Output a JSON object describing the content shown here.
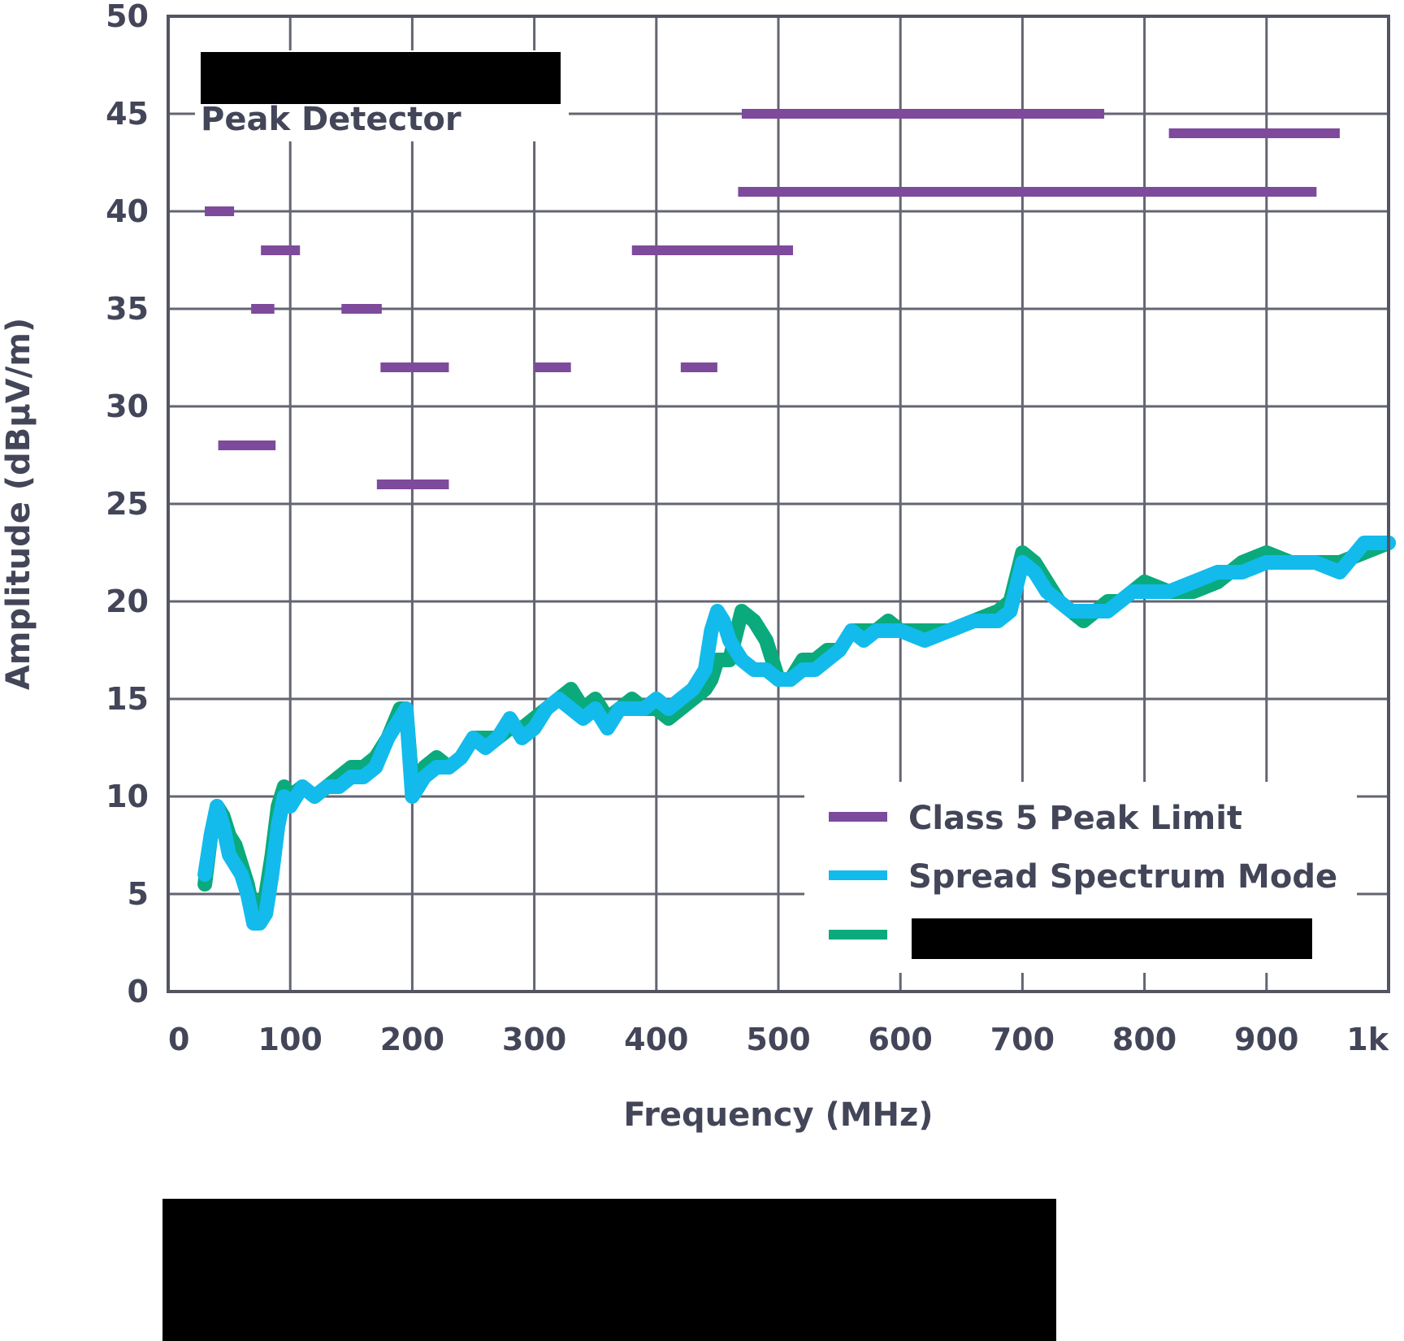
{
  "chart_data": {
    "type": "line",
    "title": "",
    "annotation": "Peak Detector",
    "xlabel": "Frequency (MHz)",
    "ylabel": "Amplitude (dBμV/m)",
    "xlim": [
      0,
      1000
    ],
    "ylim": [
      0,
      50
    ],
    "x_ticks": [
      0,
      100,
      200,
      300,
      400,
      500,
      600,
      700,
      800,
      900,
      1000
    ],
    "x_tick_labels": [
      "0",
      "100",
      "200",
      "300",
      "400",
      "500",
      "600",
      "700",
      "800",
      "900",
      "1k"
    ],
    "y_ticks": [
      0,
      5,
      10,
      15,
      20,
      25,
      30,
      35,
      40,
      45,
      50
    ],
    "y_tick_labels": [
      "0",
      "5",
      "10",
      "15",
      "20",
      "25",
      "30",
      "35",
      "40",
      "45",
      "50"
    ],
    "grid": true,
    "legend_position": "bottom-right",
    "limits": {
      "name": "Class 5 Peak Limit",
      "color": "#7d4a9c",
      "segments": [
        {
          "x": [
            30,
            54
          ],
          "y": 40
        },
        {
          "x": [
            41,
            88
          ],
          "y": 28
        },
        {
          "x": [
            68,
            87
          ],
          "y": 35
        },
        {
          "x": [
            76,
            108
          ],
          "y": 38
        },
        {
          "x": [
            142,
            175
          ],
          "y": 35
        },
        {
          "x": [
            171,
            230
          ],
          "y": 26
        },
        {
          "x": [
            174,
            230
          ],
          "y": 32
        },
        {
          "x": [
            300,
            330
          ],
          "y": 32
        },
        {
          "x": [
            380,
            512
          ],
          "y": 38
        },
        {
          "x": [
            420,
            450
          ],
          "y": 32
        },
        {
          "x": [
            467,
            941
          ],
          "y": 41
        },
        {
          "x": [
            470,
            767
          ],
          "y": 45
        },
        {
          "x": [
            820,
            960
          ],
          "y": 44
        }
      ]
    },
    "series": [
      {
        "name": "Spread Spectrum Mode",
        "color": "#12bbec",
        "x": [
          30,
          35,
          40,
          45,
          50,
          55,
          60,
          65,
          70,
          75,
          80,
          85,
          90,
          95,
          100,
          110,
          120,
          130,
          140,
          150,
          160,
          170,
          180,
          190,
          195,
          200,
          205,
          210,
          220,
          230,
          240,
          250,
          260,
          270,
          280,
          290,
          300,
          310,
          320,
          330,
          340,
          350,
          360,
          370,
          380,
          390,
          400,
          410,
          420,
          430,
          440,
          445,
          450,
          455,
          460,
          470,
          480,
          490,
          500,
          510,
          520,
          530,
          540,
          550,
          560,
          570,
          580,
          590,
          600,
          620,
          640,
          660,
          680,
          690,
          700,
          710,
          720,
          730,
          740,
          750,
          760,
          770,
          780,
          790,
          800,
          820,
          840,
          860,
          880,
          900,
          920,
          940,
          960,
          980,
          1000
        ],
        "y": [
          6,
          8,
          9.5,
          8.5,
          7,
          6.5,
          6,
          5,
          3.5,
          3.5,
          4,
          6,
          8.5,
          10,
          9.5,
          10.5,
          10,
          10.5,
          10.5,
          11,
          11,
          11.5,
          13,
          14,
          14.5,
          10,
          10.5,
          11,
          11.5,
          11.5,
          12,
          13,
          12.5,
          13,
          14,
          13,
          13.5,
          14.5,
          15,
          14.5,
          14,
          14.5,
          13.5,
          14.5,
          14.5,
          14.5,
          15,
          14.5,
          15,
          15.5,
          16.5,
          18.5,
          19.5,
          19,
          18,
          17,
          16.5,
          16.5,
          16,
          16,
          16.5,
          16.5,
          17,
          17.5,
          18.5,
          18,
          18.5,
          18.5,
          18.5,
          18,
          18.5,
          19,
          19,
          19.5,
          22,
          21.5,
          20.5,
          20,
          19.5,
          19.5,
          19.5,
          19.5,
          20,
          20.5,
          20.5,
          20.5,
          21,
          21.5,
          21.5,
          22,
          22,
          22,
          21.5,
          23,
          23
        ]
      },
      {
        "name": "",
        "color": "#0aaa7c",
        "x": [
          30,
          35,
          40,
          45,
          50,
          55,
          60,
          65,
          70,
          75,
          80,
          85,
          90,
          95,
          100,
          110,
          120,
          130,
          140,
          150,
          160,
          170,
          180,
          190,
          195,
          200,
          205,
          210,
          220,
          230,
          240,
          250,
          260,
          270,
          280,
          290,
          300,
          310,
          320,
          330,
          340,
          350,
          360,
          370,
          380,
          390,
          400,
          410,
          420,
          430,
          440,
          445,
          450,
          455,
          460,
          470,
          480,
          490,
          500,
          510,
          520,
          530,
          540,
          550,
          560,
          570,
          580,
          590,
          600,
          620,
          640,
          660,
          680,
          690,
          700,
          710,
          720,
          730,
          740,
          750,
          760,
          770,
          780,
          790,
          800,
          820,
          840,
          860,
          880,
          900,
          920,
          940,
          960,
          980,
          1000
        ],
        "y": [
          5.5,
          8,
          9.5,
          9,
          8,
          7.5,
          6.5,
          5.5,
          4,
          4,
          5,
          7,
          9.5,
          10.5,
          10,
          10.5,
          10,
          10.5,
          11,
          11.5,
          11.5,
          12,
          13,
          14.5,
          14.5,
          10.5,
          10.5,
          11.5,
          12,
          11.5,
          12,
          13,
          13,
          13,
          13.5,
          13.5,
          14,
          14.5,
          15,
          15.5,
          14.5,
          15,
          14,
          14.5,
          15,
          14.5,
          14.5,
          14,
          14.5,
          15,
          15.5,
          16,
          17,
          17,
          17,
          19.5,
          19,
          18,
          16,
          16,
          17,
          17,
          17.5,
          17.5,
          18.5,
          18.5,
          18.5,
          19,
          18.5,
          18.5,
          18.5,
          19,
          19.5,
          20,
          22.5,
          22,
          21,
          20,
          19.5,
          19,
          19.5,
          20,
          20,
          20.5,
          21,
          20.5,
          20.5,
          21,
          22,
          22.5,
          22,
          22,
          22,
          22.5,
          23
        ]
      }
    ],
    "legend": [
      {
        "label": "Class 5 Peak Limit",
        "color": "#7d4a9c"
      },
      {
        "label": "Spread Spectrum Mode",
        "color": "#12bbec"
      },
      {
        "label": "",
        "color": "#0aaa7c"
      }
    ]
  }
}
